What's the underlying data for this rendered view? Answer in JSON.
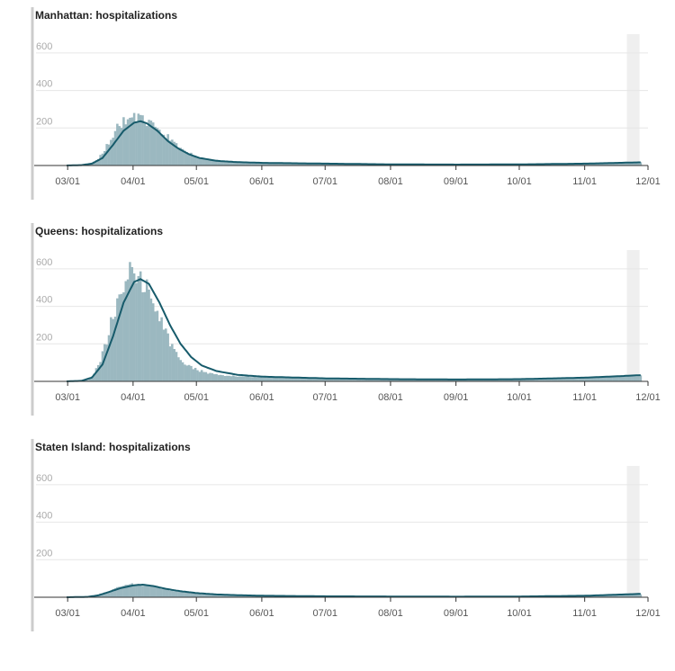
{
  "chart_data": [
    {
      "type": "bar",
      "title": "Manhattan: hospitalizations",
      "xlabel": "",
      "ylabel": "",
      "x_ticks": [
        "03/01",
        "04/01",
        "05/01",
        "06/01",
        "07/01",
        "08/01",
        "09/01",
        "10/01",
        "11/01",
        "12/01"
      ],
      "y_ticks": [
        "200",
        "400",
        "600"
      ],
      "ylim": [
        0,
        700
      ],
      "xlim": [
        "2020-02-15",
        "2020-12-01"
      ],
      "daily_start": "2020-02-29",
      "highlight_range": [
        "2020-11-21",
        "2020-11-27"
      ],
      "grid": true,
      "series": [
        {
          "kind": "bar",
          "color": "#9bb8c0",
          "anchors": [
            [
              "2020-02-29",
              0
            ],
            [
              "2020-03-05",
              1
            ],
            [
              "2020-03-10",
              5
            ],
            [
              "2020-03-14",
              25
            ],
            [
              "2020-03-18",
              80
            ],
            [
              "2020-03-21",
              150
            ],
            [
              "2020-03-24",
              200
            ],
            [
              "2020-03-27",
              230
            ],
            [
              "2020-03-30",
              260
            ],
            [
              "2020-04-02",
              255
            ],
            [
              "2020-04-05",
              240
            ],
            [
              "2020-04-09",
              215
            ],
            [
              "2020-04-13",
              185
            ],
            [
              "2020-04-17",
              150
            ],
            [
              "2020-04-21",
              110
            ],
            [
              "2020-04-26",
              75
            ],
            [
              "2020-05-01",
              48
            ],
            [
              "2020-05-08",
              30
            ],
            [
              "2020-05-15",
              22
            ],
            [
              "2020-06-01",
              15
            ],
            [
              "2020-07-01",
              10
            ],
            [
              "2020-08-01",
              6
            ],
            [
              "2020-09-01",
              5
            ],
            [
              "2020-10-01",
              6
            ],
            [
              "2020-11-01",
              10
            ],
            [
              "2020-11-27",
              16
            ]
          ]
        },
        {
          "kind": "line",
          "color": "#175b6b",
          "anchors": [
            [
              "2020-02-29",
              0
            ],
            [
              "2020-03-07",
              2
            ],
            [
              "2020-03-12",
              10
            ],
            [
              "2020-03-17",
              40
            ],
            [
              "2020-03-22",
              110
            ],
            [
              "2020-03-27",
              185
            ],
            [
              "2020-04-01",
              228
            ],
            [
              "2020-04-04",
              236
            ],
            [
              "2020-04-07",
              225
            ],
            [
              "2020-04-12",
              185
            ],
            [
              "2020-04-17",
              130
            ],
            [
              "2020-04-22",
              90
            ],
            [
              "2020-04-27",
              60
            ],
            [
              "2020-05-02",
              40
            ],
            [
              "2020-05-10",
              25
            ],
            [
              "2020-05-20",
              18
            ],
            [
              "2020-06-01",
              14
            ],
            [
              "2020-07-01",
              10
            ],
            [
              "2020-08-01",
              6
            ],
            [
              "2020-09-01",
              5
            ],
            [
              "2020-10-01",
              6
            ],
            [
              "2020-11-01",
              10
            ],
            [
              "2020-11-27",
              17
            ]
          ]
        }
      ]
    },
    {
      "type": "bar",
      "title": "Queens: hospitalizations",
      "xlabel": "",
      "ylabel": "",
      "x_ticks": [
        "03/01",
        "04/01",
        "05/01",
        "06/01",
        "07/01",
        "08/01",
        "09/01",
        "10/01",
        "11/01",
        "12/01"
      ],
      "y_ticks": [
        "200",
        "400",
        "600"
      ],
      "ylim": [
        0,
        700
      ],
      "xlim": [
        "2020-02-15",
        "2020-12-01"
      ],
      "daily_start": "2020-02-29",
      "highlight_range": [
        "2020-11-21",
        "2020-11-27"
      ],
      "grid": true,
      "series": [
        {
          "kind": "bar",
          "color": "#9bb8c0",
          "anchors": [
            [
              "2020-02-29",
              0
            ],
            [
              "2020-03-05",
              1
            ],
            [
              "2020-03-10",
              8
            ],
            [
              "2020-03-13",
              40
            ],
            [
              "2020-03-16",
              110
            ],
            [
              "2020-03-19",
              220
            ],
            [
              "2020-03-22",
              350
            ],
            [
              "2020-03-25",
              460
            ],
            [
              "2020-03-28",
              560
            ],
            [
              "2020-03-31",
              595
            ],
            [
              "2020-04-03",
              570
            ],
            [
              "2020-04-06",
              520
            ],
            [
              "2020-04-09",
              440
            ],
            [
              "2020-04-12",
              360
            ],
            [
              "2020-04-15",
              280
            ],
            [
              "2020-04-18",
              210
            ],
            [
              "2020-04-21",
              150
            ],
            [
              "2020-04-25",
              100
            ],
            [
              "2020-05-01",
              60
            ],
            [
              "2020-05-08",
              40
            ],
            [
              "2020-05-15",
              30
            ],
            [
              "2020-06-01",
              22
            ],
            [
              "2020-07-01",
              15
            ],
            [
              "2020-08-01",
              12
            ],
            [
              "2020-09-01",
              10
            ],
            [
              "2020-10-01",
              12
            ],
            [
              "2020-11-01",
              20
            ],
            [
              "2020-11-27",
              30
            ]
          ]
        },
        {
          "kind": "line",
          "color": "#175b6b",
          "anchors": [
            [
              "2020-02-29",
              0
            ],
            [
              "2020-03-07",
              3
            ],
            [
              "2020-03-12",
              20
            ],
            [
              "2020-03-17",
              90
            ],
            [
              "2020-03-22",
              240
            ],
            [
              "2020-03-27",
              420
            ],
            [
              "2020-04-01",
              530
            ],
            [
              "2020-04-04",
              545
            ],
            [
              "2020-04-08",
              520
            ],
            [
              "2020-04-13",
              420
            ],
            [
              "2020-04-18",
              300
            ],
            [
              "2020-04-23",
              200
            ],
            [
              "2020-04-28",
              130
            ],
            [
              "2020-05-03",
              85
            ],
            [
              "2020-05-10",
              55
            ],
            [
              "2020-05-20",
              35
            ],
            [
              "2020-06-01",
              25
            ],
            [
              "2020-07-01",
              16
            ],
            [
              "2020-08-01",
              12
            ],
            [
              "2020-09-01",
              10
            ],
            [
              "2020-10-01",
              12
            ],
            [
              "2020-11-01",
              20
            ],
            [
              "2020-11-27",
              33
            ]
          ]
        }
      ]
    },
    {
      "type": "bar",
      "title": "Staten Island: hospitalizations",
      "xlabel": "",
      "ylabel": "",
      "x_ticks": [
        "03/01",
        "04/01",
        "05/01",
        "06/01",
        "07/01",
        "08/01",
        "09/01",
        "10/01",
        "11/01",
        "12/01"
      ],
      "y_ticks": [
        "200",
        "400",
        "600"
      ],
      "ylim": [
        0,
        700
      ],
      "xlim": [
        "2020-02-15",
        "2020-12-01"
      ],
      "daily_start": "2020-02-29",
      "highlight_range": [
        "2020-11-21",
        "2020-11-27"
      ],
      "grid": true,
      "series": [
        {
          "kind": "bar",
          "color": "#9bb8c0",
          "anchors": [
            [
              "2020-02-29",
              0
            ],
            [
              "2020-03-08",
              1
            ],
            [
              "2020-03-13",
              8
            ],
            [
              "2020-03-18",
              25
            ],
            [
              "2020-03-23",
              45
            ],
            [
              "2020-03-28",
              62
            ],
            [
              "2020-04-02",
              70
            ],
            [
              "2020-04-07",
              65
            ],
            [
              "2020-04-12",
              52
            ],
            [
              "2020-04-18",
              38
            ],
            [
              "2020-04-25",
              27
            ],
            [
              "2020-05-02",
              18
            ],
            [
              "2020-05-15",
              10
            ],
            [
              "2020-06-01",
              6
            ],
            [
              "2020-07-01",
              4
            ],
            [
              "2020-08-01",
              3
            ],
            [
              "2020-09-01",
              3
            ],
            [
              "2020-10-01",
              4
            ],
            [
              "2020-11-01",
              8
            ],
            [
              "2020-11-27",
              16
            ]
          ]
        },
        {
          "kind": "line",
          "color": "#175b6b",
          "anchors": [
            [
              "2020-02-29",
              0
            ],
            [
              "2020-03-10",
              2
            ],
            [
              "2020-03-15",
              10
            ],
            [
              "2020-03-20",
              28
            ],
            [
              "2020-03-26",
              50
            ],
            [
              "2020-04-01",
              64
            ],
            [
              "2020-04-05",
              67
            ],
            [
              "2020-04-10",
              60
            ],
            [
              "2020-04-16",
              45
            ],
            [
              "2020-04-23",
              32
            ],
            [
              "2020-05-01",
              22
            ],
            [
              "2020-05-10",
              15
            ],
            [
              "2020-05-20",
              11
            ],
            [
              "2020-06-01",
              8
            ],
            [
              "2020-07-01",
              5
            ],
            [
              "2020-08-01",
              4
            ],
            [
              "2020-09-01",
              3
            ],
            [
              "2020-10-01",
              4
            ],
            [
              "2020-11-01",
              8
            ],
            [
              "2020-11-27",
              18
            ]
          ]
        }
      ]
    }
  ]
}
